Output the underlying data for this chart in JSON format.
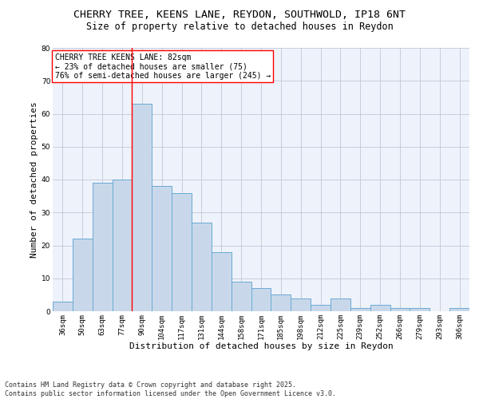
{
  "title_line1": "CHERRY TREE, KEENS LANE, REYDON, SOUTHWOLD, IP18 6NT",
  "title_line2": "Size of property relative to detached houses in Reydon",
  "xlabel": "Distribution of detached houses by size in Reydon",
  "ylabel": "Number of detached properties",
  "categories": [
    "36sqm",
    "50sqm",
    "63sqm",
    "77sqm",
    "90sqm",
    "104sqm",
    "117sqm",
    "131sqm",
    "144sqm",
    "158sqm",
    "171sqm",
    "185sqm",
    "198sqm",
    "212sqm",
    "225sqm",
    "239sqm",
    "252sqm",
    "266sqm",
    "279sqm",
    "293sqm",
    "306sqm"
  ],
  "values": [
    3,
    22,
    39,
    40,
    63,
    38,
    36,
    27,
    18,
    9,
    7,
    5,
    4,
    2,
    4,
    1,
    2,
    1,
    1,
    0,
    1
  ],
  "bar_color": "#c8d8ea",
  "bar_edge_color": "#6aaad4",
  "grid_color": "#c0c8d8",
  "background_color": "#eef2fa",
  "annotation_text": "CHERRY TREE KEENS LANE: 82sqm\n← 23% of detached houses are smaller (75)\n76% of semi-detached houses are larger (245) →",
  "annotation_box_color": "white",
  "annotation_box_edge_color": "red",
  "redline_x": 3.5,
  "ylim": [
    0,
    80
  ],
  "yticks": [
    0,
    10,
    20,
    30,
    40,
    50,
    60,
    70,
    80
  ],
  "footnote": "Contains HM Land Registry data © Crown copyright and database right 2025.\nContains public sector information licensed under the Open Government Licence v3.0.",
  "title_fontsize": 9.5,
  "subtitle_fontsize": 8.5,
  "label_fontsize": 8,
  "tick_fontsize": 6.5,
  "annotation_fontsize": 7,
  "footnote_fontsize": 6
}
